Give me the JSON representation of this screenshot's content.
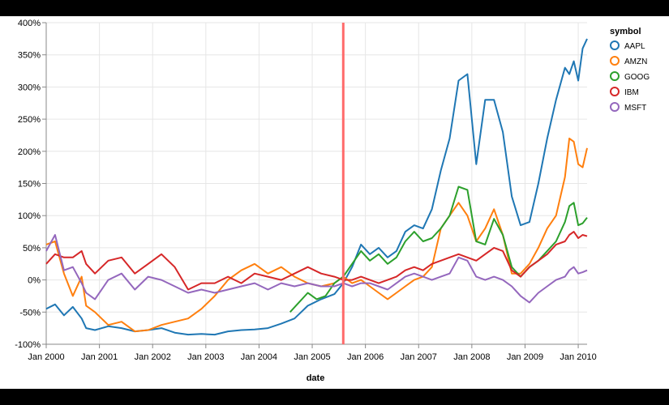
{
  "chart_data": {
    "type": "line",
    "xlabel": "date",
    "ylabel": "",
    "x_ticks": [
      "Jan 2000",
      "Jan 2001",
      "Jan 2002",
      "Jan 2003",
      "Jan 2004",
      "Jan 2005",
      "Jan 2006",
      "Jan 2007",
      "Jan 2008",
      "Jan 2009",
      "Jan 2010"
    ],
    "y_ticks": [
      "400%",
      "350%",
      "300%",
      "250%",
      "200%",
      "150%",
      "100%",
      "50%",
      "0%",
      "-50%",
      "-100%"
    ],
    "ylim": [
      -100,
      400
    ],
    "xlim": [
      "2000-01",
      "2010-03"
    ],
    "grid": true,
    "legend": {
      "title": "symbol",
      "placement": "right"
    },
    "rule": {
      "x": "2005-08",
      "color": "#ff6b6b"
    },
    "series": [
      {
        "name": "AAPL",
        "color": "#1f77b4",
        "points": [
          [
            "2000-01",
            -45
          ],
          [
            "2000-03",
            -38
          ],
          [
            "2000-05",
            -55
          ],
          [
            "2000-07",
            -42
          ],
          [
            "2000-09",
            -60
          ],
          [
            "2000-10",
            -75
          ],
          [
            "2000-12",
            -78
          ],
          [
            "2001-03",
            -72
          ],
          [
            "2001-06",
            -75
          ],
          [
            "2001-09",
            -80
          ],
          [
            "2001-12",
            -78
          ],
          [
            "2002-03",
            -75
          ],
          [
            "2002-06",
            -82
          ],
          [
            "2002-09",
            -85
          ],
          [
            "2002-12",
            -84
          ],
          [
            "2003-03",
            -85
          ],
          [
            "2003-06",
            -80
          ],
          [
            "2003-09",
            -78
          ],
          [
            "2003-12",
            -77
          ],
          [
            "2004-03",
            -75
          ],
          [
            "2004-06",
            -68
          ],
          [
            "2004-09",
            -60
          ],
          [
            "2004-12",
            -40
          ],
          [
            "2005-03",
            -30
          ],
          [
            "2005-06",
            -22
          ],
          [
            "2005-08",
            -5
          ],
          [
            "2005-10",
            20
          ],
          [
            "2005-12",
            55
          ],
          [
            "2006-02",
            40
          ],
          [
            "2006-04",
            50
          ],
          [
            "2006-06",
            35
          ],
          [
            "2006-08",
            45
          ],
          [
            "2006-10",
            75
          ],
          [
            "2006-12",
            85
          ],
          [
            "2007-02",
            80
          ],
          [
            "2007-04",
            110
          ],
          [
            "2007-06",
            170
          ],
          [
            "2007-08",
            220
          ],
          [
            "2007-10",
            310
          ],
          [
            "2007-12",
            320
          ],
          [
            "2008-02",
            180
          ],
          [
            "2008-04",
            280
          ],
          [
            "2008-06",
            280
          ],
          [
            "2008-08",
            230
          ],
          [
            "2008-10",
            130
          ],
          [
            "2008-12",
            85
          ],
          [
            "2009-02",
            90
          ],
          [
            "2009-04",
            150
          ],
          [
            "2009-06",
            220
          ],
          [
            "2009-08",
            280
          ],
          [
            "2009-10",
            330
          ],
          [
            "2009-11",
            320
          ],
          [
            "2009-12",
            340
          ],
          [
            "2010-01",
            310
          ],
          [
            "2010-02",
            360
          ],
          [
            "2010-03",
            375
          ]
        ]
      },
      {
        "name": "AMZN",
        "color": "#ff7f0e",
        "points": [
          [
            "2000-01",
            55
          ],
          [
            "2000-03",
            60
          ],
          [
            "2000-05",
            10
          ],
          [
            "2000-07",
            -25
          ],
          [
            "2000-09",
            5
          ],
          [
            "2000-10",
            -40
          ],
          [
            "2000-12",
            -50
          ],
          [
            "2001-03",
            -70
          ],
          [
            "2001-06",
            -65
          ],
          [
            "2001-09",
            -80
          ],
          [
            "2001-12",
            -78
          ],
          [
            "2002-03",
            -70
          ],
          [
            "2002-06",
            -65
          ],
          [
            "2002-09",
            -60
          ],
          [
            "2002-12",
            -45
          ],
          [
            "2003-03",
            -25
          ],
          [
            "2003-06",
            0
          ],
          [
            "2003-09",
            15
          ],
          [
            "2003-12",
            25
          ],
          [
            "2004-03",
            10
          ],
          [
            "2004-06",
            20
          ],
          [
            "2004-09",
            5
          ],
          [
            "2004-12",
            -5
          ],
          [
            "2005-03",
            -10
          ],
          [
            "2005-06",
            -5
          ],
          [
            "2005-08",
            5
          ],
          [
            "2005-10",
            -5
          ],
          [
            "2005-12",
            0
          ],
          [
            "2006-02",
            -10
          ],
          [
            "2006-04",
            -20
          ],
          [
            "2006-06",
            -30
          ],
          [
            "2006-08",
            -20
          ],
          [
            "2006-10",
            -10
          ],
          [
            "2006-12",
            0
          ],
          [
            "2007-02",
            5
          ],
          [
            "2007-04",
            20
          ],
          [
            "2007-06",
            80
          ],
          [
            "2007-08",
            100
          ],
          [
            "2007-10",
            120
          ],
          [
            "2007-12",
            100
          ],
          [
            "2008-02",
            60
          ],
          [
            "2008-04",
            80
          ],
          [
            "2008-06",
            110
          ],
          [
            "2008-08",
            70
          ],
          [
            "2008-10",
            10
          ],
          [
            "2008-12",
            10
          ],
          [
            "2009-02",
            25
          ],
          [
            "2009-04",
            50
          ],
          [
            "2009-06",
            80
          ],
          [
            "2009-08",
            100
          ],
          [
            "2009-10",
            160
          ],
          [
            "2009-11",
            220
          ],
          [
            "2009-12",
            215
          ],
          [
            "2010-01",
            180
          ],
          [
            "2010-02",
            175
          ],
          [
            "2010-03",
            205
          ]
        ]
      },
      {
        "name": "GOOG",
        "color": "#2ca02c",
        "points": [
          [
            "2004-08",
            -50
          ],
          [
            "2004-10",
            -35
          ],
          [
            "2004-12",
            -20
          ],
          [
            "2005-02",
            -30
          ],
          [
            "2005-04",
            -25
          ],
          [
            "2005-06",
            -5
          ],
          [
            "2005-08",
            5
          ],
          [
            "2005-10",
            25
          ],
          [
            "2005-12",
            45
          ],
          [
            "2006-02",
            30
          ],
          [
            "2006-04",
            40
          ],
          [
            "2006-06",
            25
          ],
          [
            "2006-08",
            35
          ],
          [
            "2006-10",
            60
          ],
          [
            "2006-12",
            75
          ],
          [
            "2007-02",
            60
          ],
          [
            "2007-04",
            65
          ],
          [
            "2007-06",
            80
          ],
          [
            "2007-08",
            100
          ],
          [
            "2007-10",
            145
          ],
          [
            "2007-12",
            140
          ],
          [
            "2008-02",
            60
          ],
          [
            "2008-04",
            55
          ],
          [
            "2008-06",
            95
          ],
          [
            "2008-08",
            70
          ],
          [
            "2008-10",
            20
          ],
          [
            "2008-12",
            5
          ],
          [
            "2009-02",
            20
          ],
          [
            "2009-04",
            30
          ],
          [
            "2009-06",
            45
          ],
          [
            "2009-08",
            60
          ],
          [
            "2009-10",
            90
          ],
          [
            "2009-11",
            115
          ],
          [
            "2009-12",
            120
          ],
          [
            "2010-01",
            85
          ],
          [
            "2010-02",
            88
          ],
          [
            "2010-03",
            97
          ]
        ]
      },
      {
        "name": "IBM",
        "color": "#d62728",
        "points": [
          [
            "2000-01",
            25
          ],
          [
            "2000-03",
            40
          ],
          [
            "2000-05",
            35
          ],
          [
            "2000-07",
            35
          ],
          [
            "2000-09",
            45
          ],
          [
            "2000-10",
            25
          ],
          [
            "2000-12",
            10
          ],
          [
            "2001-03",
            30
          ],
          [
            "2001-06",
            35
          ],
          [
            "2001-09",
            10
          ],
          [
            "2001-12",
            25
          ],
          [
            "2002-03",
            40
          ],
          [
            "2002-06",
            20
          ],
          [
            "2002-09",
            -15
          ],
          [
            "2002-12",
            -5
          ],
          [
            "2003-03",
            -5
          ],
          [
            "2003-06",
            5
          ],
          [
            "2003-09",
            -5
          ],
          [
            "2003-12",
            10
          ],
          [
            "2004-03",
            5
          ],
          [
            "2004-06",
            0
          ],
          [
            "2004-09",
            10
          ],
          [
            "2004-12",
            20
          ],
          [
            "2005-03",
            10
          ],
          [
            "2005-06",
            5
          ],
          [
            "2005-08",
            0
          ],
          [
            "2005-10",
            0
          ],
          [
            "2005-12",
            5
          ],
          [
            "2006-02",
            0
          ],
          [
            "2006-04",
            -5
          ],
          [
            "2006-06",
            0
          ],
          [
            "2006-08",
            5
          ],
          [
            "2006-10",
            15
          ],
          [
            "2006-12",
            20
          ],
          [
            "2007-02",
            15
          ],
          [
            "2007-04",
            25
          ],
          [
            "2007-06",
            30
          ],
          [
            "2007-08",
            35
          ],
          [
            "2007-10",
            40
          ],
          [
            "2007-12",
            35
          ],
          [
            "2008-02",
            30
          ],
          [
            "2008-04",
            40
          ],
          [
            "2008-06",
            50
          ],
          [
            "2008-08",
            45
          ],
          [
            "2008-10",
            15
          ],
          [
            "2008-12",
            5
          ],
          [
            "2009-02",
            20
          ],
          [
            "2009-04",
            30
          ],
          [
            "2009-06",
            40
          ],
          [
            "2009-08",
            55
          ],
          [
            "2009-10",
            60
          ],
          [
            "2009-11",
            70
          ],
          [
            "2009-12",
            75
          ],
          [
            "2010-01",
            65
          ],
          [
            "2010-02",
            70
          ],
          [
            "2010-03",
            68
          ]
        ]
      },
      {
        "name": "MSFT",
        "color": "#9467bd",
        "points": [
          [
            "2000-01",
            45
          ],
          [
            "2000-03",
            70
          ],
          [
            "2000-05",
            15
          ],
          [
            "2000-07",
            20
          ],
          [
            "2000-09",
            -5
          ],
          [
            "2000-10",
            -20
          ],
          [
            "2000-12",
            -30
          ],
          [
            "2001-03",
            0
          ],
          [
            "2001-06",
            10
          ],
          [
            "2001-09",
            -15
          ],
          [
            "2001-12",
            5
          ],
          [
            "2002-03",
            0
          ],
          [
            "2002-06",
            -10
          ],
          [
            "2002-09",
            -20
          ],
          [
            "2002-12",
            -15
          ],
          [
            "2003-03",
            -20
          ],
          [
            "2003-06",
            -15
          ],
          [
            "2003-09",
            -10
          ],
          [
            "2003-12",
            -5
          ],
          [
            "2004-03",
            -15
          ],
          [
            "2004-06",
            -5
          ],
          [
            "2004-09",
            -10
          ],
          [
            "2004-12",
            -5
          ],
          [
            "2005-03",
            -10
          ],
          [
            "2005-06",
            -10
          ],
          [
            "2005-08",
            -5
          ],
          [
            "2005-10",
            -10
          ],
          [
            "2005-12",
            -5
          ],
          [
            "2006-02",
            -5
          ],
          [
            "2006-04",
            -10
          ],
          [
            "2006-06",
            -15
          ],
          [
            "2006-08",
            -5
          ],
          [
            "2006-10",
            5
          ],
          [
            "2006-12",
            10
          ],
          [
            "2007-02",
            5
          ],
          [
            "2007-04",
            0
          ],
          [
            "2007-06",
            5
          ],
          [
            "2007-08",
            10
          ],
          [
            "2007-10",
            35
          ],
          [
            "2007-12",
            30
          ],
          [
            "2008-02",
            5
          ],
          [
            "2008-04",
            0
          ],
          [
            "2008-06",
            5
          ],
          [
            "2008-08",
            0
          ],
          [
            "2008-10",
            -10
          ],
          [
            "2008-12",
            -25
          ],
          [
            "2009-02",
            -35
          ],
          [
            "2009-04",
            -20
          ],
          [
            "2009-06",
            -10
          ],
          [
            "2009-08",
            0
          ],
          [
            "2009-10",
            5
          ],
          [
            "2009-11",
            15
          ],
          [
            "2009-12",
            20
          ],
          [
            "2010-01",
            10
          ],
          [
            "2010-02",
            12
          ],
          [
            "2010-03",
            15
          ]
        ]
      }
    ]
  }
}
